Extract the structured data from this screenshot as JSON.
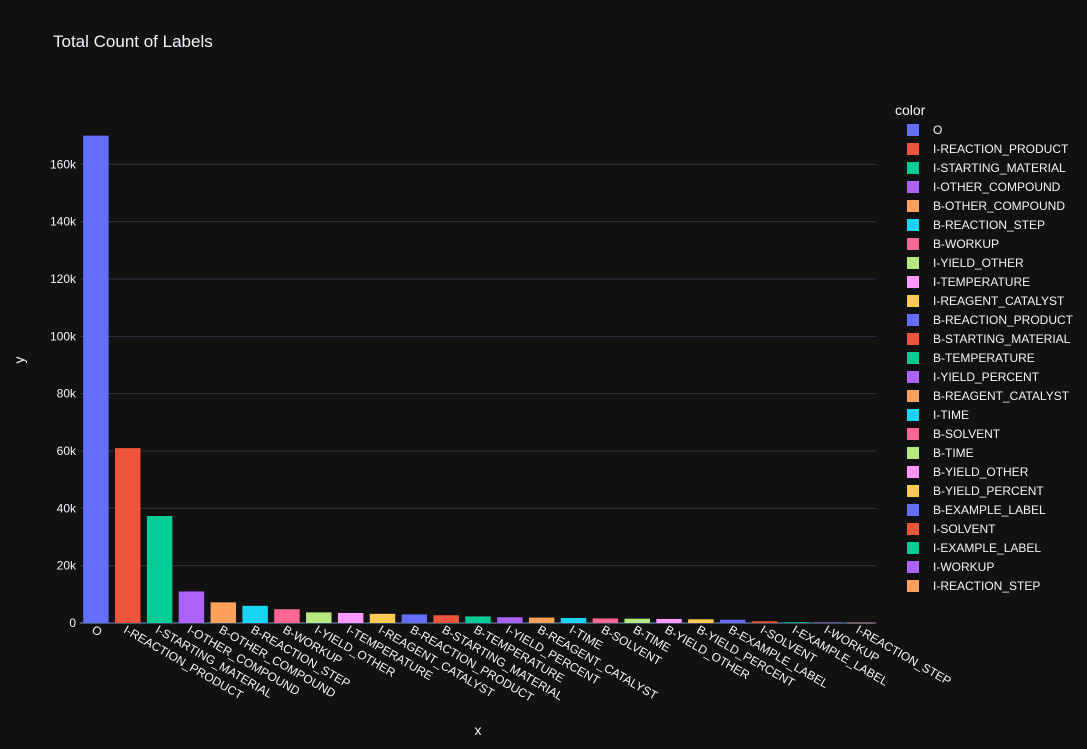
{
  "chart_data": {
    "type": "bar",
    "title": "Total Count of Labels",
    "xlabel": "x",
    "ylabel": "y",
    "legend_title": "color",
    "legend_position": "right",
    "grid": true,
    "ylim": [
      0,
      178947
    ],
    "y_ticks": [
      0,
      20000,
      40000,
      60000,
      80000,
      100000,
      120000,
      140000,
      160000
    ],
    "y_tick_labels": [
      "0",
      "20k",
      "40k",
      "60k",
      "80k",
      "100k",
      "120k",
      "140k",
      "160k"
    ],
    "categories": [
      "O",
      "I-REACTION_PRODUCT",
      "I-STARTING_MATERIAL",
      "I-OTHER_COMPOUND",
      "B-OTHER_COMPOUND",
      "B-REACTION_STEP",
      "B-WORKUP",
      "I-YIELD_OTHER",
      "I-TEMPERATURE",
      "I-REAGENT_CATALYST",
      "B-REACTION_PRODUCT",
      "B-STARTING_MATERIAL",
      "B-TEMPERATURE",
      "I-YIELD_PERCENT",
      "B-REAGENT_CATALYST",
      "I-TIME",
      "B-SOLVENT",
      "B-TIME",
      "B-YIELD_OTHER",
      "B-YIELD_PERCENT",
      "B-EXAMPLE_LABEL",
      "I-SOLVENT",
      "I-EXAMPLE_LABEL",
      "I-WORKUP",
      "I-REACTION_STEP"
    ],
    "values": [
      170000,
      61000,
      37300,
      11000,
      7200,
      6000,
      4800,
      3700,
      3500,
      3200,
      3000,
      2700,
      2300,
      2000,
      1900,
      1750,
      1600,
      1500,
      1400,
      1300,
      1100,
      600,
      250,
      150,
      100
    ],
    "colors": [
      "#636efa",
      "#EF553B",
      "#00cc96",
      "#ab63fa",
      "#FFA15A",
      "#19d3f3",
      "#FF6692",
      "#B6E880",
      "#FF97FF",
      "#FECB52",
      "#636efa",
      "#EF553B",
      "#00cc96",
      "#ab63fa",
      "#FFA15A",
      "#19d3f3",
      "#FF6692",
      "#B6E880",
      "#FF97FF",
      "#FECB52",
      "#636efa",
      "#EF553B",
      "#00cc96",
      "#ab63fa",
      "#FFA15A"
    ]
  }
}
